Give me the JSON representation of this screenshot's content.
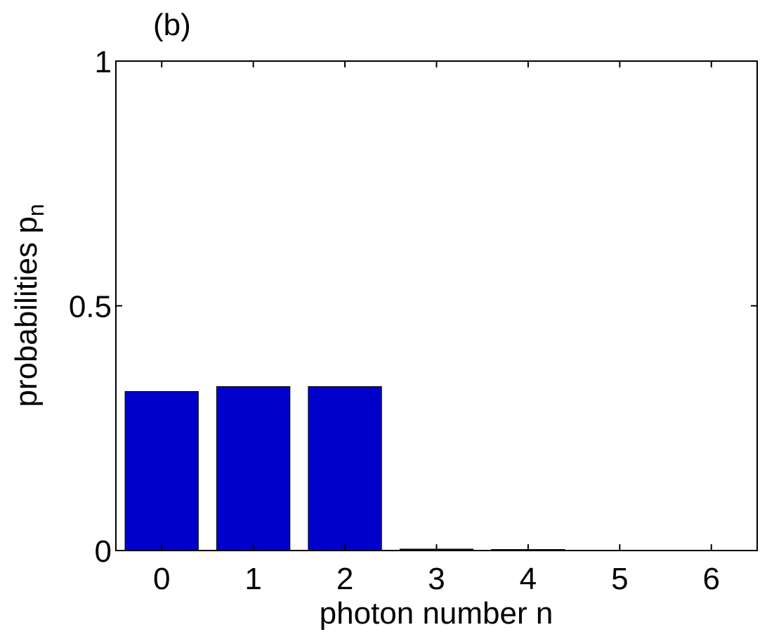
{
  "panel_label": "(b)",
  "chart_data": {
    "type": "bar",
    "categories": [
      "0",
      "1",
      "2",
      "3",
      "4",
      "5",
      "6"
    ],
    "values": [
      0.325,
      0.335,
      0.335,
      0.003,
      0.001,
      0.0,
      0.0
    ],
    "xlabel": "photon number n",
    "ylabel": {
      "main": "probabilities p",
      "subscript": "n"
    },
    "ylim": [
      0,
      1
    ],
    "yticks": [
      0,
      0.5,
      1
    ],
    "ytick_labels": [
      "0",
      "0.5",
      "1"
    ],
    "grid": false,
    "bar_color": "#0000cc"
  }
}
